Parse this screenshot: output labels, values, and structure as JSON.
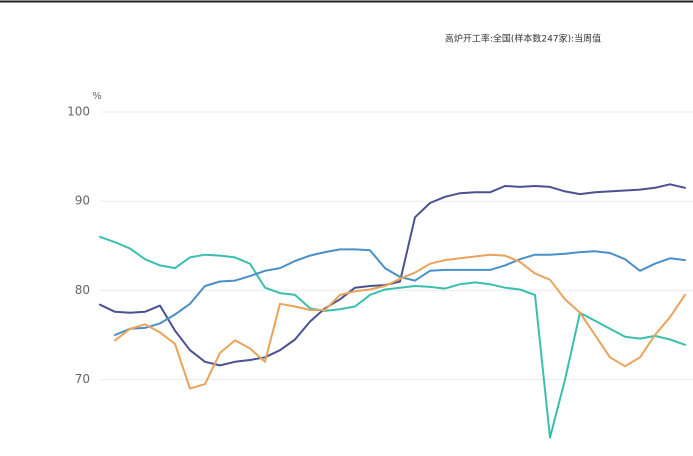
{
  "chart_data": {
    "type": "line",
    "title": "高炉开工率:全国(样本数247家):当周值",
    "y_unit": "%",
    "categories": [
      null,
      null,
      null,
      null,
      null,
      null,
      null,
      null,
      null,
      null,
      null,
      null,
      null,
      null,
      null,
      null,
      null,
      null,
      null,
      null,
      null,
      null,
      null,
      null,
      null,
      null,
      null,
      null,
      null,
      null,
      null,
      null,
      null,
      null,
      null,
      null,
      null,
      null,
      null,
      null
    ],
    "ylim": [
      62,
      100
    ],
    "yticks": [
      70,
      80,
      90,
      100
    ],
    "grid": true,
    "series": [
      {
        "color": "#3bbfad",
        "values": [
          86,
          85.4,
          84.7,
          83.5,
          82.8,
          82.5,
          83.7,
          84,
          83.9,
          83.7,
          83,
          80.3,
          79.7,
          79.5,
          78,
          77.7,
          77.9,
          78.2,
          79.5,
          80.1,
          80.3,
          80.5,
          80.4,
          80.2,
          80.7,
          80.9,
          80.7,
          80.3,
          80.1,
          79.5,
          63.5,
          70,
          77.5,
          76.6,
          75.7,
          74.8,
          74.6,
          74.9,
          74.5,
          73.9
        ]
      },
      {
        "color": "#4a5290",
        "values": [
          78.4,
          77.6,
          77.5,
          77.6,
          78.3,
          75.5,
          73.3,
          72,
          71.6,
          72,
          72.2,
          72.5,
          73.3,
          74.5,
          76.5,
          78,
          79,
          80.3,
          80.5,
          80.6,
          81,
          88.2,
          89.8,
          90.5,
          90.9,
          91,
          91,
          91.7,
          91.6,
          91.7,
          91.6,
          91.1,
          90.8,
          91,
          91.1,
          91.2,
          91.3,
          91.5,
          91.9,
          91.5
        ]
      },
      {
        "color": "#4a8fc8",
        "values": [
          null,
          75,
          75.7,
          75.8,
          76.3,
          77.3,
          78.5,
          80.5,
          81,
          81.1,
          81.6,
          82.2,
          82.5,
          83.3,
          83.9,
          84.3,
          84.6,
          84.6,
          84.5,
          82.5,
          81.5,
          81.1,
          82.2,
          82.3,
          82.3,
          82.3,
          82.3,
          82.8,
          83.5,
          84,
          84,
          84.1,
          84.3,
          84.4,
          84.2,
          83.5,
          82.2,
          83,
          83.6,
          83.4
        ]
      },
      {
        "color": "#e9a35a",
        "values": [
          null,
          74.4,
          75.7,
          76.2,
          75.3,
          74,
          69,
          69.5,
          73,
          74.4,
          73.5,
          72,
          78.5,
          78.2,
          77.8,
          77.8,
          79.5,
          79.9,
          80.1,
          80.5,
          81.3,
          82,
          83,
          83.4,
          83.6,
          83.8,
          84,
          83.9,
          83.2,
          81.9,
          81.2,
          79,
          77.5,
          75,
          72.5,
          71.5,
          72.5,
          75,
          77,
          79.5
        ]
      }
    ]
  }
}
